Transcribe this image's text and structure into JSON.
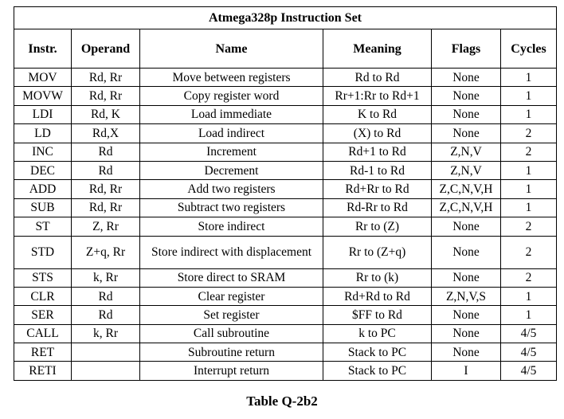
{
  "table": {
    "title": "Atmega328p Instruction Set",
    "headers": [
      "Instr.",
      "Operand",
      "Name",
      "Meaning",
      "Flags",
      "Cycles"
    ],
    "rows": [
      [
        "MOV",
        "Rd, Rr",
        "Move between registers",
        "Rd to Rd",
        "None",
        "1"
      ],
      [
        "MOVW",
        "Rd, Rr",
        "Copy register word",
        "Rr+1:Rr to Rd+1",
        "None",
        "1"
      ],
      [
        "LDI",
        "Rd, K",
        "Load immediate",
        "K to Rd",
        "None",
        "1"
      ],
      [
        "LD",
        "Rd,X",
        "Load indirect",
        "(X) to Rd",
        "None",
        "2"
      ],
      [
        "INC",
        "Rd",
        "Increment",
        "Rd+1 to Rd",
        "Z,N,V",
        "2"
      ],
      [
        "DEC",
        "Rd",
        "Decrement",
        "Rd-1 to Rd",
        "Z,N,V",
        "1"
      ],
      [
        "ADD",
        "Rd, Rr",
        "Add two registers",
        "Rd+Rr to Rd",
        "Z,C,N,V,H",
        "1"
      ],
      [
        "SUB",
        "Rd, Rr",
        "Subtract two registers",
        "Rd-Rr to Rd",
        "Z,C,N,V,H",
        "1"
      ],
      [
        "ST",
        "Z, Rr",
        "Store indirect",
        "Rr to (Z)",
        "None",
        "2"
      ],
      [
        "STD",
        "Z+q, Rr",
        "Store indirect with displacement",
        "Rr to (Z+q)",
        "None",
        "2"
      ],
      [
        "STS",
        "k, Rr",
        "Store direct to SRAM",
        "Rr to (k)",
        "None",
        "2"
      ],
      [
        "CLR",
        "Rd",
        "Clear register",
        "Rd+Rd to Rd",
        "Z,N,V,S",
        "1"
      ],
      [
        "SER",
        "Rd",
        "Set register",
        "$FF to Rd",
        "None",
        "1"
      ],
      [
        "CALL",
        "k, Rr",
        "Call subroutine",
        "k to PC",
        "None",
        "4/5"
      ],
      [
        "RET",
        "",
        "Subroutine return",
        "Stack to PC",
        "None",
        "4/5"
      ],
      [
        "RETI",
        "",
        "Interrupt return",
        "Stack to PC",
        "I",
        "4/5"
      ]
    ]
  },
  "caption": "Table Q-2b2"
}
